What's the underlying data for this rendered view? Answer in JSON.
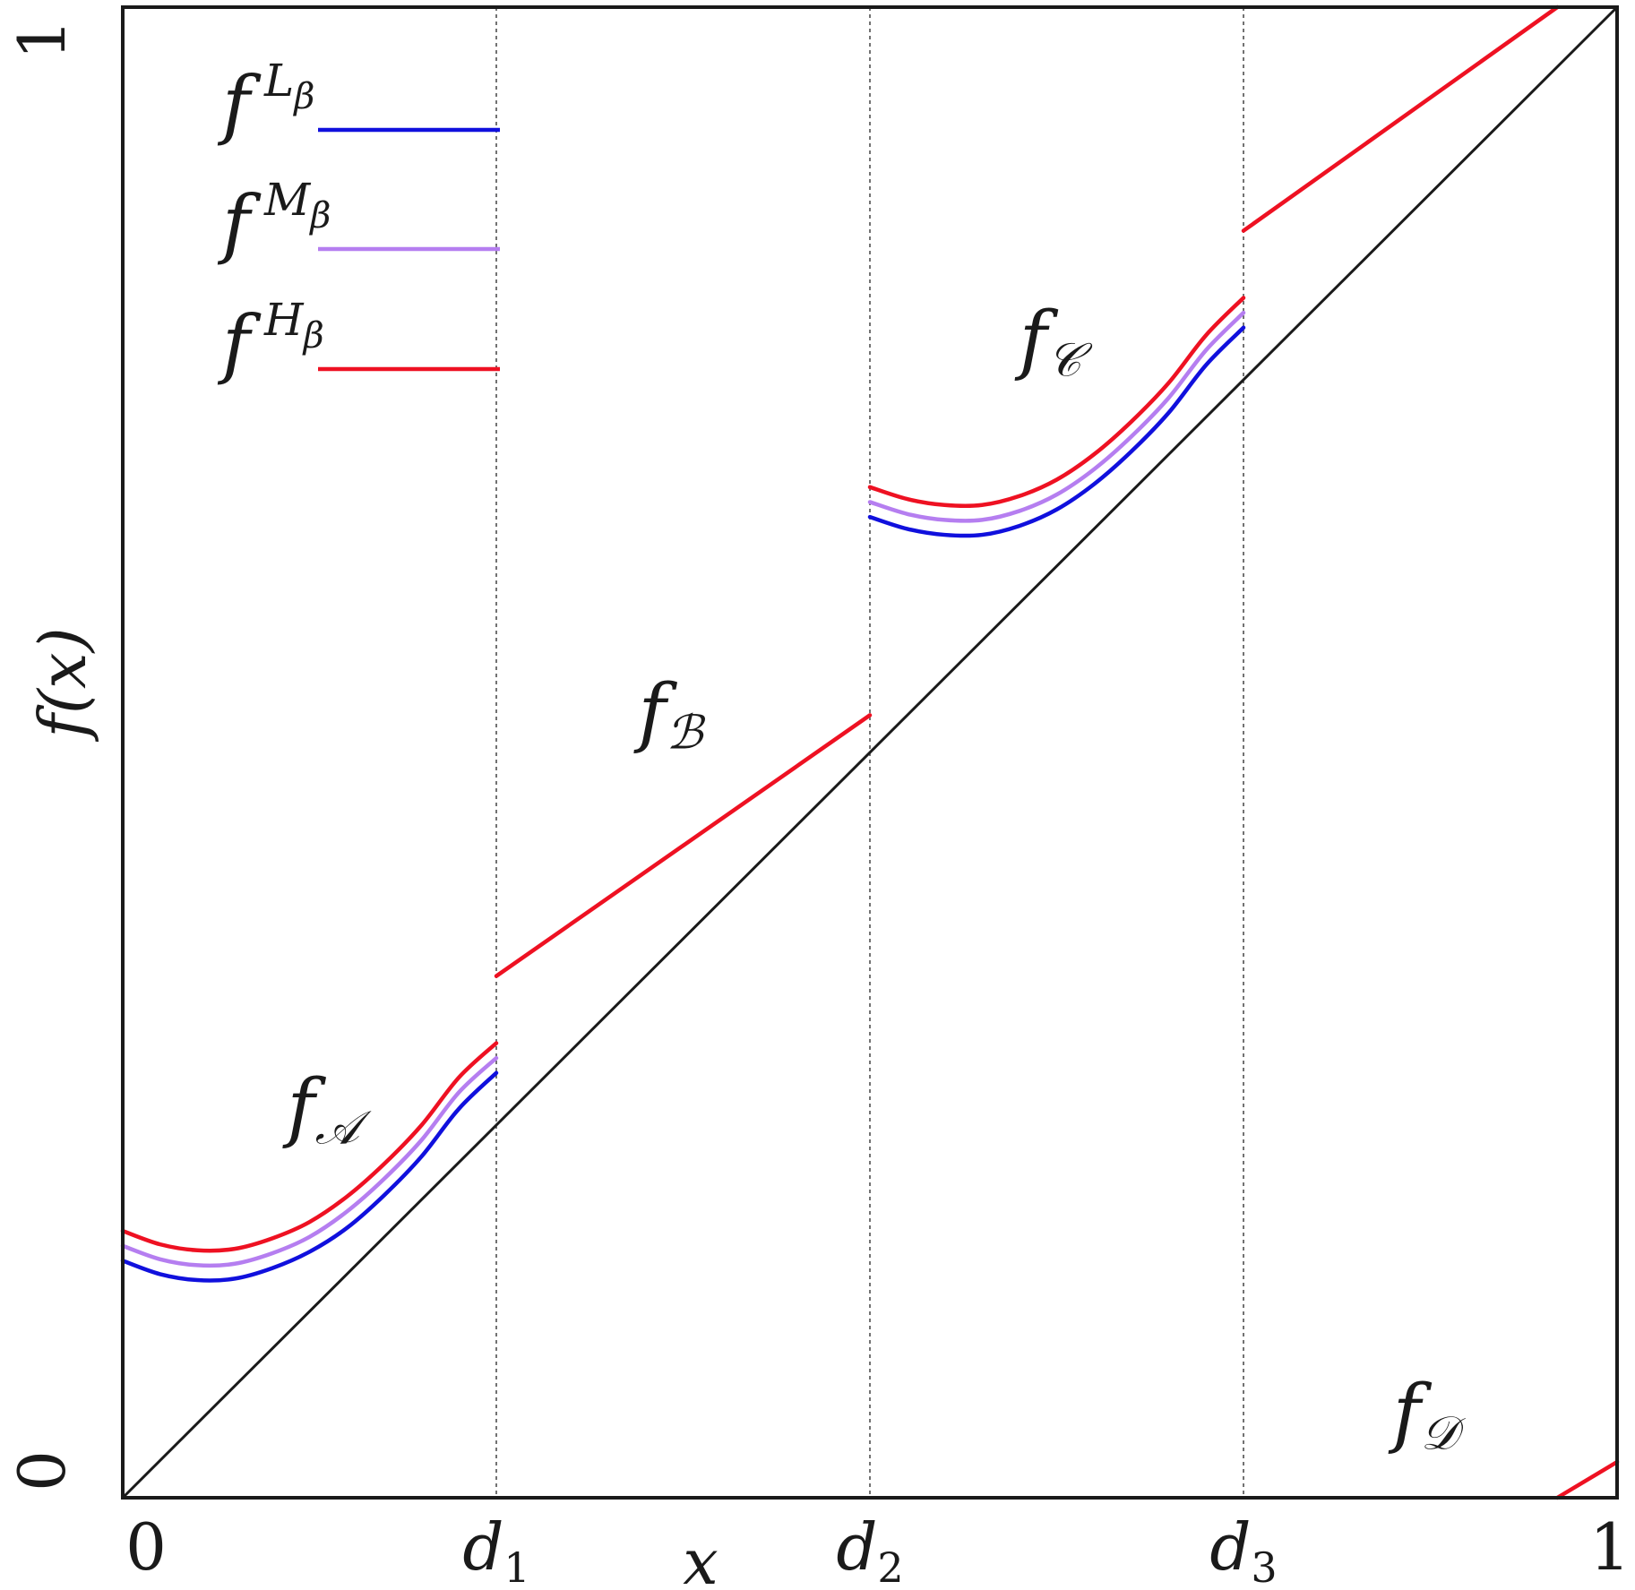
{
  "chart_data": {
    "type": "line",
    "xlabel": "x",
    "ylabel": "f(x)",
    "xlim": [
      0,
      1
    ],
    "ylim": [
      0,
      1
    ],
    "x_ticks": [
      {
        "value": 0,
        "label": "0",
        "sub": ""
      },
      {
        "value": 0.25,
        "label": "d",
        "sub": "1"
      },
      {
        "value": 0.5,
        "label": "d",
        "sub": "2"
      },
      {
        "value": 0.75,
        "label": "d",
        "sub": "3"
      },
      {
        "value": 1,
        "label": "1",
        "sub": ""
      }
    ],
    "y_ticks": [
      {
        "value": 0,
        "label": "0"
      },
      {
        "value": 1,
        "label": "1"
      }
    ],
    "breakpoints": [
      0.25,
      0.5,
      0.75
    ],
    "diagonal": {
      "from": [
        0,
        0
      ],
      "to": [
        1,
        1
      ],
      "color": "#1a1a1a"
    },
    "legend": {
      "placement": "top-left",
      "entries": [
        {
          "base": "f",
          "sup": "L",
          "sub": "β",
          "color": "#1010dd"
        },
        {
          "base": "f",
          "sup": "M",
          "sub": "β",
          "color": "#b57ef0"
        },
        {
          "base": "f",
          "sup": "H",
          "sub": "β",
          "color": "#ee1122"
        }
      ]
    },
    "region_labels": [
      {
        "base": "f",
        "sub": "𝒜",
        "x": 0.11,
        "y": 0.245
      },
      {
        "base": "f",
        "sub": "ℬ",
        "x": 0.345,
        "y": 0.51
      },
      {
        "base": "f",
        "sub": "𝒞",
        "x": 0.6,
        "y": 0.76
      },
      {
        "base": "f",
        "sub": "𝒟",
        "x": 0.85,
        "y": 0.04
      }
    ],
    "series": [
      {
        "name": "f^{L_β}",
        "color": "#1010dd",
        "segments": [
          {
            "x": [
              0,
              0.025,
              0.05,
              0.075,
              0.1,
              0.125,
              0.15,
              0.175,
              0.2,
              0.225,
              0.25
            ],
            "y": [
              0.159,
              0.15,
              0.146,
              0.147,
              0.154,
              0.165,
              0.181,
              0.203,
              0.229,
              0.261,
              0.285
            ]
          },
          {
            "x": [
              0.5,
              0.525,
              0.55,
              0.575,
              0.6,
              0.625,
              0.65,
              0.675,
              0.7,
              0.725,
              0.75
            ],
            "y": [
              0.658,
              0.65,
              0.646,
              0.646,
              0.652,
              0.663,
              0.68,
              0.702,
              0.728,
              0.76,
              0.785
            ]
          }
        ]
      },
      {
        "name": "f^{M_β}",
        "color": "#b57ef0",
        "segments": [
          {
            "x": [
              0,
              0.025,
              0.05,
              0.075,
              0.1,
              0.125,
              0.15,
              0.175,
              0.2,
              0.225,
              0.25
            ],
            "y": [
              0.169,
              0.16,
              0.156,
              0.157,
              0.164,
              0.175,
              0.192,
              0.214,
              0.24,
              0.272,
              0.295
            ]
          },
          {
            "x": [
              0.5,
              0.525,
              0.55,
              0.575,
              0.6,
              0.625,
              0.65,
              0.675,
              0.7,
              0.725,
              0.75
            ],
            "y": [
              0.668,
              0.66,
              0.656,
              0.656,
              0.662,
              0.673,
              0.69,
              0.712,
              0.738,
              0.77,
              0.795
            ]
          }
        ]
      },
      {
        "name": "f^{H_β}",
        "color": "#ee1122",
        "segments": [
          {
            "x": [
              0,
              0.025,
              0.05,
              0.075,
              0.1,
              0.125,
              0.15,
              0.175,
              0.2,
              0.225,
              0.25
            ],
            "y": [
              0.179,
              0.17,
              0.166,
              0.167,
              0.174,
              0.185,
              0.202,
              0.224,
              0.25,
              0.282,
              0.305
            ]
          },
          {
            "x": [
              0.25,
              0.5
            ],
            "y": [
              0.35,
              0.525
            ]
          },
          {
            "x": [
              0.5,
              0.525,
              0.55,
              0.575,
              0.6,
              0.625,
              0.65,
              0.675,
              0.7,
              0.725,
              0.75
            ],
            "y": [
              0.678,
              0.67,
              0.666,
              0.666,
              0.672,
              0.683,
              0.7,
              0.722,
              0.748,
              0.78,
              0.805
            ]
          },
          {
            "x": [
              0.75,
              0.96
            ],
            "y": [
              0.85,
              1.0
            ]
          },
          {
            "x": [
              0.96,
              1.0
            ],
            "y": [
              0.0,
              0.024
            ]
          }
        ]
      }
    ]
  }
}
